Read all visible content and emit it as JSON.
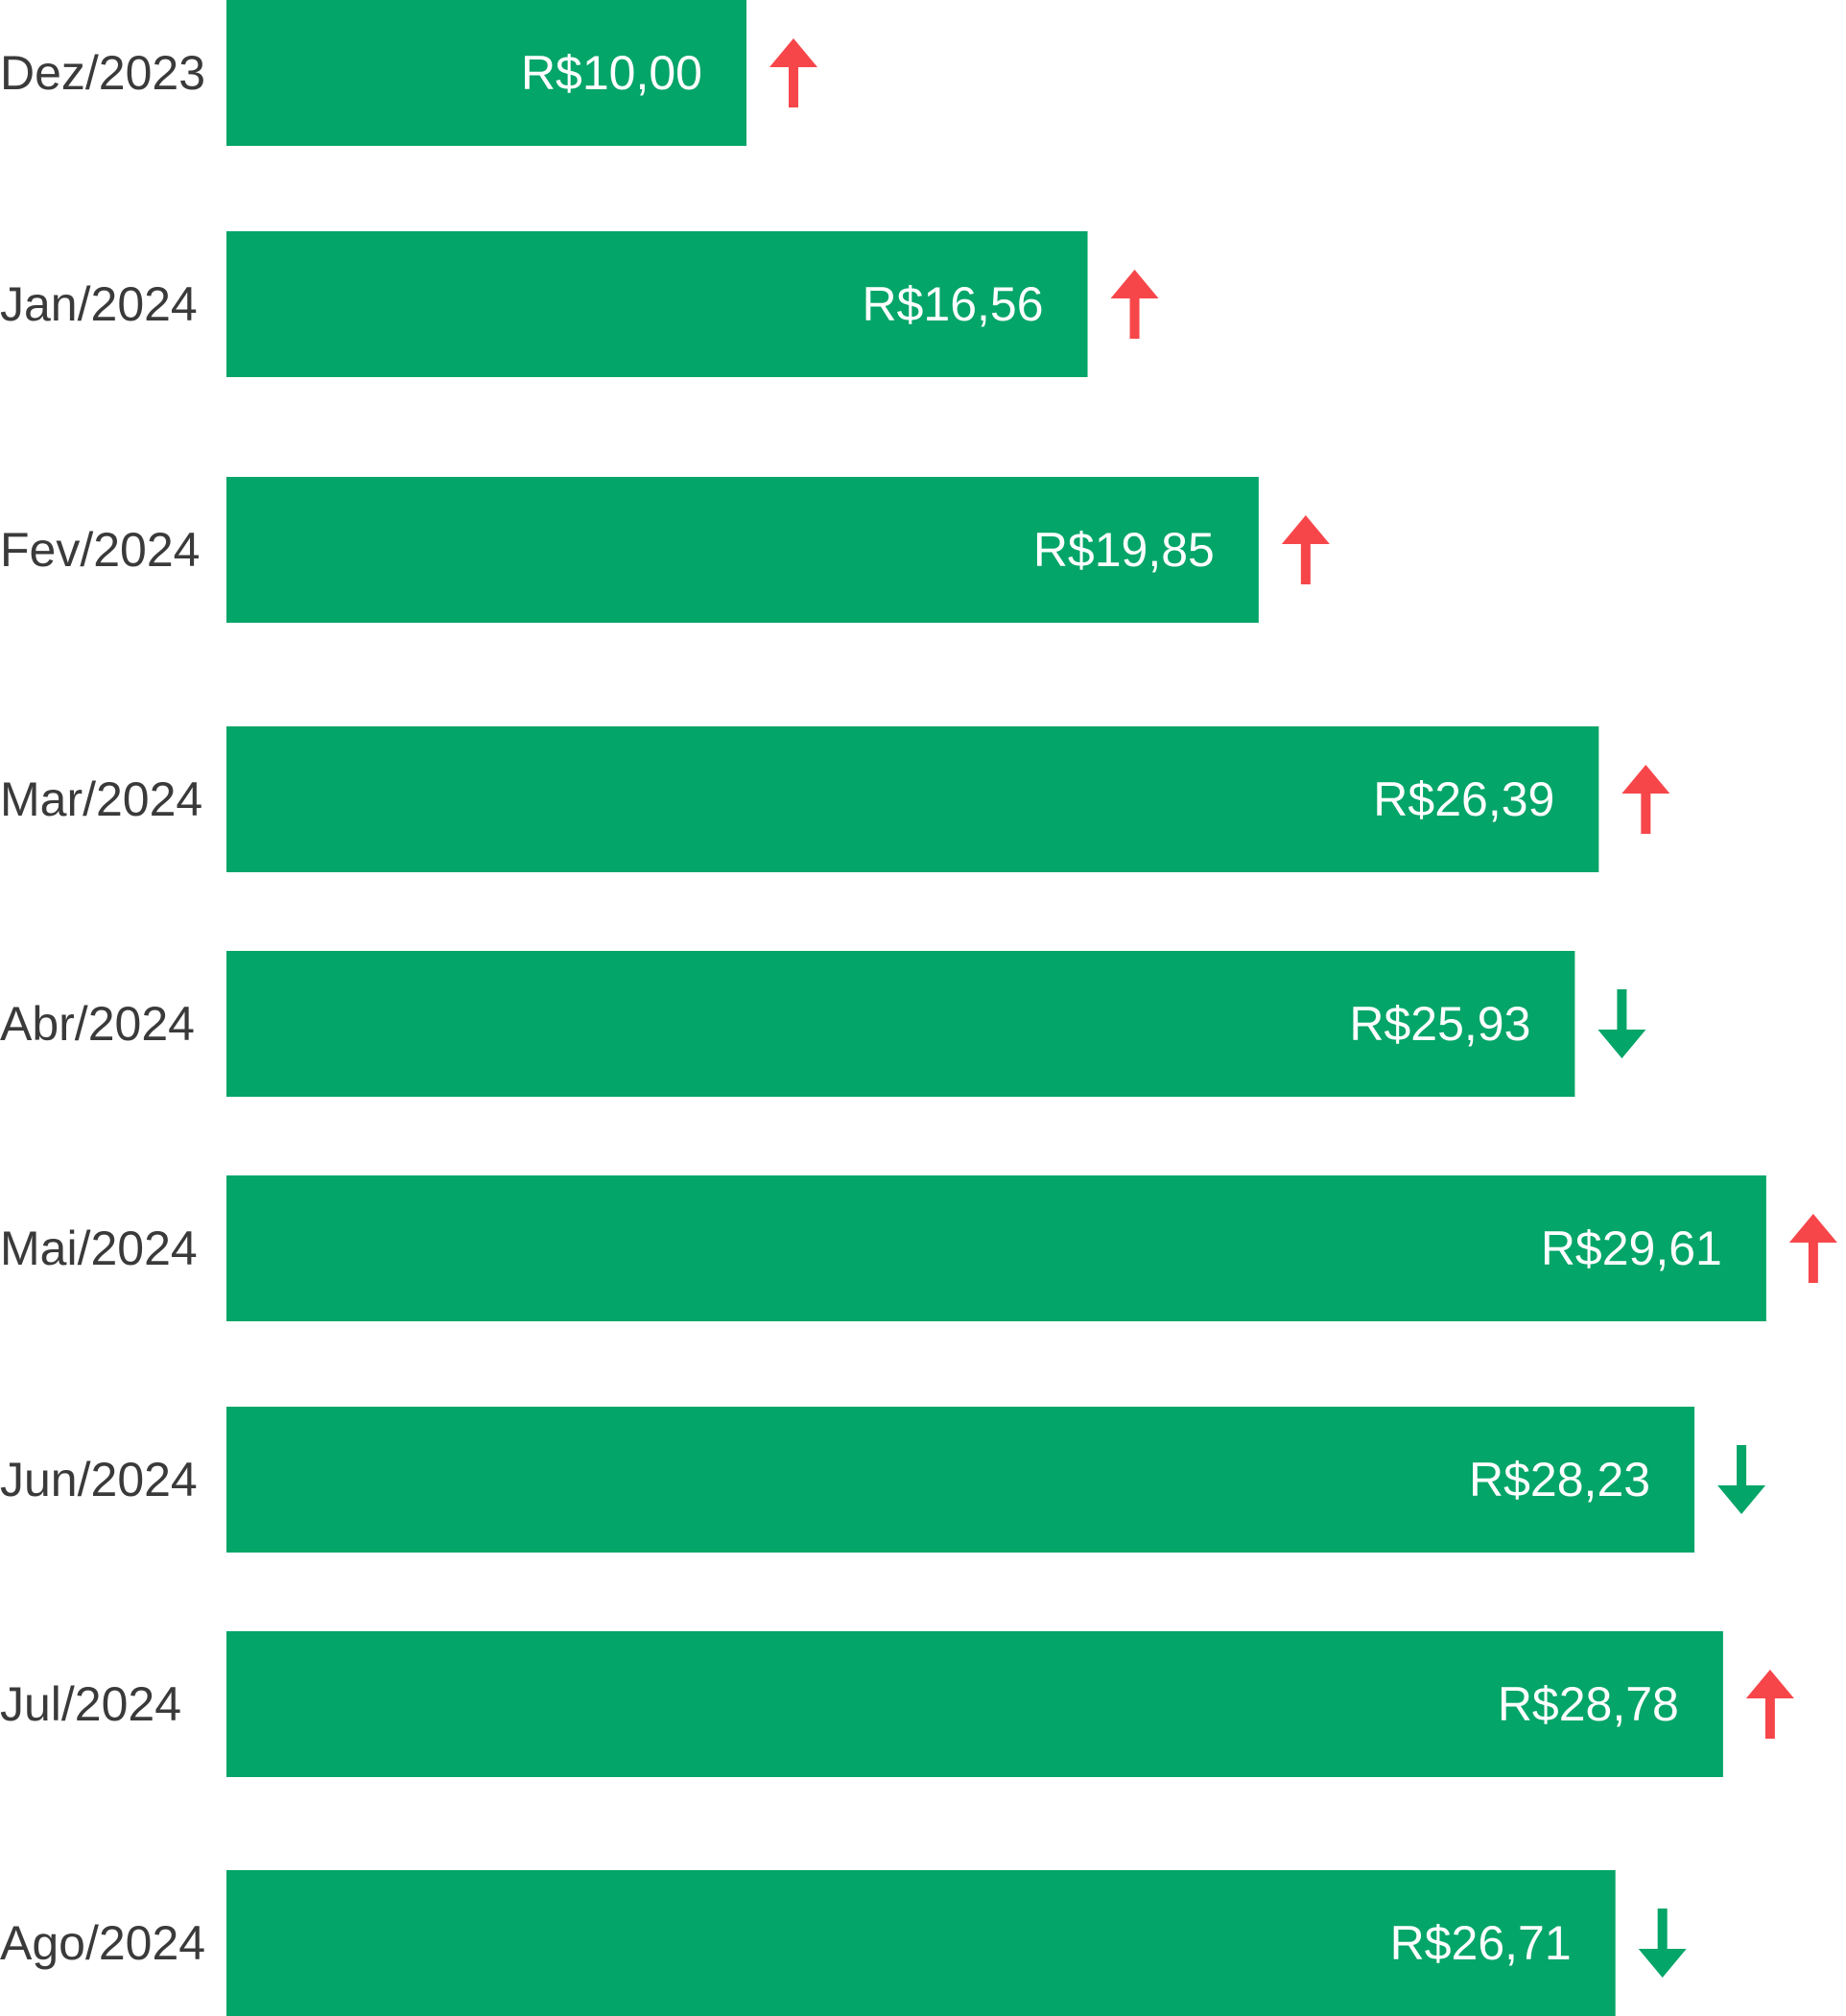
{
  "colors": {
    "bar": "#03a568",
    "up": "#f6464a",
    "down": "#03a568",
    "label": "#3a3a3a",
    "value_text": "#ffffff",
    "background": "#ffffff"
  },
  "chart_data": {
    "type": "bar",
    "orientation": "horizontal",
    "title": "",
    "xlabel": "",
    "ylabel": "",
    "grid": false,
    "legend": "none",
    "xlim": [
      0,
      32
    ],
    "categories": [
      "Dez/2023",
      "Jan/2024",
      "Fev/2024",
      "Mar/2024",
      "Abr/2024",
      "Mai/2024",
      "Jun/2024",
      "Jul/2024",
      "Ago/2024"
    ],
    "values": [
      10.0,
      16.56,
      19.85,
      26.39,
      25.93,
      29.61,
      28.23,
      28.78,
      26.71
    ],
    "value_labels": [
      "R$10,00",
      "R$16,56",
      "R$19,85",
      "R$26,39",
      "R$25,93",
      "R$29,61",
      "R$28,23",
      "R$28,78",
      "R$26,71"
    ],
    "trend": [
      "up",
      "up",
      "up",
      "up",
      "down",
      "up",
      "down",
      "up",
      "down"
    ],
    "trend_icons": [
      "arrow-up-icon",
      "arrow-up-icon",
      "arrow-up-icon",
      "arrow-up-icon",
      "arrow-down-icon",
      "arrow-up-icon",
      "arrow-down-icon",
      "arrow-up-icon",
      "arrow-down-icon"
    ]
  }
}
